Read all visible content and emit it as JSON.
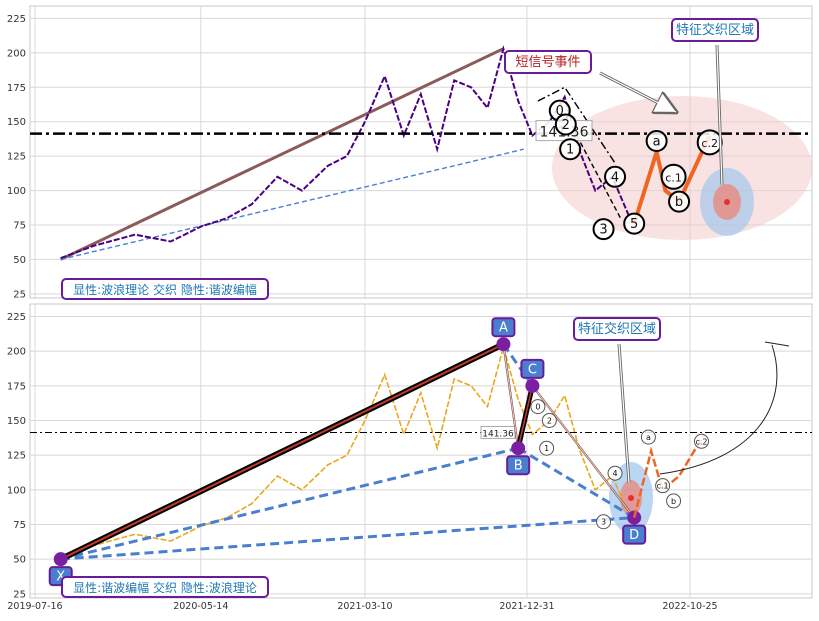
{
  "chart_data": [
    {
      "type": "line",
      "panel": "top",
      "ylim": [
        22,
        234
      ],
      "yticks": [
        25,
        50,
        75,
        100,
        125,
        150,
        175,
        200,
        225
      ],
      "grid": true,
      "hline": {
        "y": 141.36,
        "label": "141.36",
        "style": "dash-dot"
      },
      "price_series": {
        "name": "",
        "color": "#4b0082",
        "x": [
          "2019-09-01",
          "2019-11-01",
          "2020-01-15",
          "2020-03-20",
          "2020-05-15",
          "2020-07-01",
          "2020-08-15",
          "2020-10-01",
          "2020-11-15",
          "2021-01-01",
          "2021-02-05",
          "2021-03-10",
          "2021-04-15",
          "2021-05-20",
          "2021-06-20",
          "2021-07-20",
          "2021-08-20",
          "2021-09-20",
          "2021-10-20",
          "2021-11-18",
          "2021-12-15",
          "2022-01-10",
          "2022-02-10",
          "2022-03-10",
          "2022-04-05",
          "2022-05-05",
          "2022-06-05",
          "2022-07-05"
        ],
        "values": [
          51,
          60,
          68,
          63,
          74,
          80,
          90,
          110,
          100,
          118,
          125,
          150,
          183,
          140,
          170,
          130,
          180,
          175,
          160,
          203,
          165,
          140,
          150,
          168,
          130,
          100,
          110,
          82
        ]
      },
      "lines": [
        {
          "name": "",
          "color": "#8b5a5a",
          "style": "solid",
          "x": [
            "2019-09-01",
            "2021-11-18"
          ],
          "y": [
            50,
            203
          ]
        },
        {
          "name": "",
          "color": "#4a7fd0",
          "style": "dashed",
          "x": [
            "2019-09-01",
            "2021-12-25"
          ],
          "y": [
            50,
            130
          ]
        },
        {
          "name": "",
          "color": "#000000",
          "style": "dash-dot",
          "x": [
            "2022-01-20",
            "2022-03-10",
            "2022-06-10"
          ],
          "y": [
            165,
            175,
            120
          ]
        },
        {
          "name": "",
          "color": "#000000",
          "style": "dashed",
          "x": [
            "2022-04-01",
            "2022-06-20"
          ],
          "y": [
            140,
            80
          ]
        }
      ],
      "wave_points": [
        {
          "label": "0",
          "x": "2022-03-01",
          "y": 158
        },
        {
          "label": "2",
          "x": "2022-03-12",
          "y": 148
        },
        {
          "label": "1",
          "x": "2022-03-20",
          "y": 130
        },
        {
          "label": "3",
          "x": "2022-05-20",
          "y": 72
        },
        {
          "label": "4",
          "x": "2022-06-10",
          "y": 110
        },
        {
          "label": "5",
          "x": "2022-07-15",
          "y": 76
        },
        {
          "label": "a",
          "x": "2022-08-25",
          "y": 136
        },
        {
          "label": "b",
          "x": "2022-10-05",
          "y": 92
        },
        {
          "label": "c.1",
          "x": "2022-09-25",
          "y": 110
        },
        {
          "label": "c.2",
          "x": "2022-11-30",
          "y": 135
        }
      ],
      "projection": {
        "color": "#ee6622",
        "x": [
          "2022-07-15",
          "2022-08-25",
          "2022-09-10",
          "2022-10-05",
          "2022-11-30"
        ],
        "y": [
          76,
          128,
          100,
          92,
          140
        ]
      },
      "annotations": [
        {
          "text": "短信号事件",
          "color": "#b22222"
        },
        {
          "text": "特征交织区域",
          "color": "#1f77b4"
        },
        {
          "text": "显性:波浪理论 交织 隐性:谐波编幅",
          "color": "#1f77b4"
        }
      ]
    },
    {
      "type": "line",
      "panel": "bottom",
      "ylim": [
        22,
        234
      ],
      "yticks": [
        25,
        50,
        75,
        100,
        125,
        150,
        175,
        200,
        225
      ],
      "xticks": [
        "2019-07-16",
        "2020-05-14",
        "2021-03-10",
        "2021-12-31",
        "2022-10-25"
      ],
      "grid": true,
      "hline": {
        "y": 141.36,
        "label": "141.36",
        "style": "dash-dot"
      },
      "price_series": {
        "name": "",
        "color": "#e8a820",
        "x": [
          "2019-09-01",
          "2019-11-01",
          "2020-01-15",
          "2020-03-20",
          "2020-05-15",
          "2020-07-01",
          "2020-08-15",
          "2020-10-01",
          "2020-11-15",
          "2021-01-01",
          "2021-02-05",
          "2021-03-10",
          "2021-04-15",
          "2021-05-20",
          "2021-06-20",
          "2021-07-20",
          "2021-08-20",
          "2021-09-20",
          "2021-10-20",
          "2021-11-18",
          "2021-12-15",
          "2022-01-10",
          "2022-02-10",
          "2022-03-10",
          "2022-04-05",
          "2022-05-05",
          "2022-06-05",
          "2022-07-05"
        ],
        "values": [
          51,
          60,
          68,
          63,
          74,
          80,
          90,
          110,
          100,
          118,
          125,
          150,
          183,
          140,
          170,
          130,
          180,
          175,
          160,
          203,
          165,
          140,
          150,
          168,
          130,
          100,
          110,
          82
        ]
      },
      "harmonic_points": [
        {
          "label": "X",
          "x": "2019-09-01",
          "y": 50
        },
        {
          "label": "A",
          "x": "2021-11-18",
          "y": 205
        },
        {
          "label": "B",
          "x": "2021-12-15",
          "y": 130
        },
        {
          "label": "C",
          "x": "2022-01-10",
          "y": 175
        },
        {
          "label": "D",
          "x": "2022-07-15",
          "y": 80
        }
      ],
      "wave_points": [
        {
          "label": "0",
          "x": "2022-01-20",
          "y": 160
        },
        {
          "label": "2",
          "x": "2022-02-10",
          "y": 150
        },
        {
          "label": "1",
          "x": "2022-02-05",
          "y": 130
        },
        {
          "label": "3",
          "x": "2022-05-20",
          "y": 77
        },
        {
          "label": "4",
          "x": "2022-06-10",
          "y": 112
        },
        {
          "label": "a",
          "x": "2022-08-10",
          "y": 138
        },
        {
          "label": "b",
          "x": "2022-09-25",
          "y": 92
        },
        {
          "label": "c.1",
          "x": "2022-09-05",
          "y": 103
        },
        {
          "label": "c.2",
          "x": "2022-11-15",
          "y": 135
        }
      ],
      "projection": {
        "color": "#ee6622",
        "x": [
          "2022-07-15",
          "2022-08-15",
          "2022-09-05",
          "2022-10-05",
          "2022-11-20"
        ],
        "y": [
          80,
          128,
          100,
          110,
          140
        ]
      },
      "annotations": [
        {
          "text": "特征交织区域",
          "color": "#1f77b4"
        },
        {
          "text": "显性:谐波编幅 交织 隐性:波浪理论",
          "color": "#1f77b4"
        }
      ]
    }
  ]
}
